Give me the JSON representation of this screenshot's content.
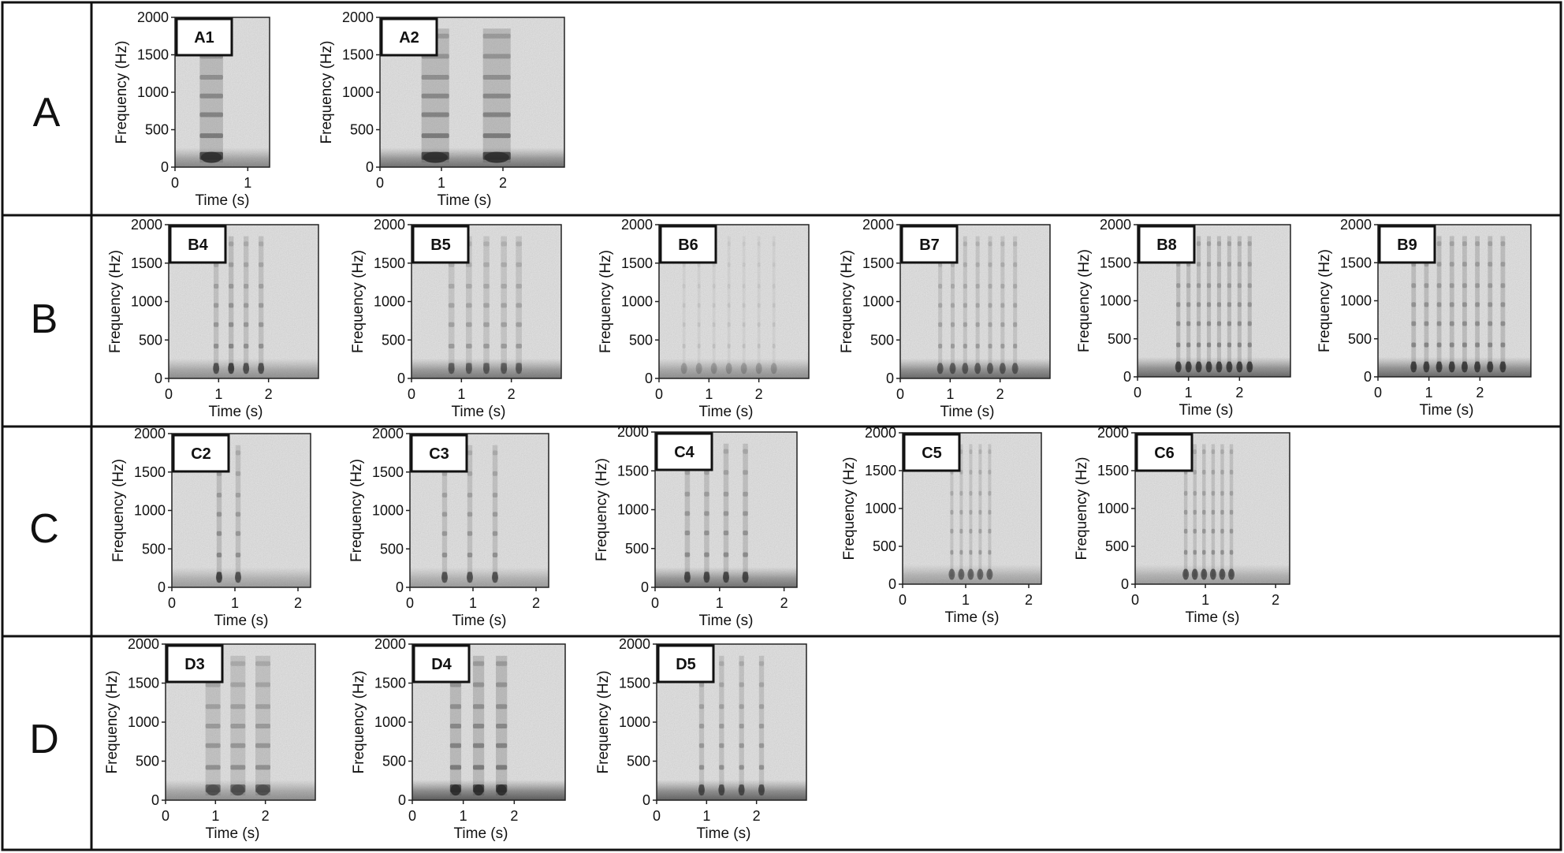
{
  "figure": {
    "colors": {
      "background": "#ffffff",
      "border": "#111111",
      "spectrogram_bg": "#cdcdcd",
      "spectrogram_dark": "#303030"
    },
    "rows": [
      {
        "label": "A",
        "panels": [
          {
            "label": "A1",
            "x_ticks": [
              0,
              1
            ],
            "y_ticks": [
              0,
              500,
              1000,
              1500,
              2000
            ],
            "xlabel": "Time (s)",
            "ylabel": "Frequency (Hz)"
          },
          {
            "label": "A2",
            "x_ticks": [
              0,
              1,
              2
            ],
            "y_ticks": [
              0,
              500,
              1000,
              1500,
              2000
            ],
            "xlabel": "Time (s)",
            "ylabel": "Frequency (Hz)"
          }
        ]
      },
      {
        "label": "B",
        "panels": [
          {
            "label": "B4",
            "x_ticks": [
              0,
              1,
              2
            ],
            "y_ticks": [
              0,
              500,
              1000,
              1500,
              2000
            ],
            "xlabel": "Time (s)",
            "ylabel": "Frequency (Hz)"
          },
          {
            "label": "B5",
            "x_ticks": [
              0,
              1,
              2
            ],
            "y_ticks": [
              0,
              500,
              1000,
              1500,
              2000
            ],
            "xlabel": "Time (s)",
            "ylabel": "Frequency (Hz)"
          },
          {
            "label": "B6",
            "x_ticks": [
              0,
              1,
              2
            ],
            "y_ticks": [
              0,
              500,
              1000,
              1500,
              2000
            ],
            "xlabel": "Time (s)",
            "ylabel": "Frequency (Hz)"
          },
          {
            "label": "B7",
            "x_ticks": [
              0,
              1,
              2
            ],
            "y_ticks": [
              0,
              500,
              1000,
              1500,
              2000
            ],
            "xlabel": "Time (s)",
            "ylabel": "Frequency (Hz)"
          },
          {
            "label": "B8",
            "x_ticks": [
              0,
              1,
              2
            ],
            "y_ticks": [
              0,
              500,
              1000,
              1500,
              2000
            ],
            "xlabel": "Time (s)",
            "ylabel": "Frequency (Hz)"
          },
          {
            "label": "B9",
            "x_ticks": [
              0,
              1,
              2
            ],
            "y_ticks": [
              0,
              500,
              1000,
              1500,
              2000
            ],
            "xlabel": "Time (s)",
            "ylabel": "Frequency (Hz)"
          }
        ]
      },
      {
        "label": "C",
        "panels": [
          {
            "label": "C2",
            "x_ticks": [
              0,
              1,
              2
            ],
            "y_ticks": [
              0,
              500,
              1000,
              1500,
              2000
            ],
            "xlabel": "Time (s)",
            "ylabel": "Frequency (Hz)"
          },
          {
            "label": "C3",
            "x_ticks": [
              0,
              1,
              2
            ],
            "y_ticks": [
              0,
              500,
              1000,
              1500,
              2000
            ],
            "xlabel": "Time (s)",
            "ylabel": "Frequency (Hz)"
          },
          {
            "label": "C4",
            "x_ticks": [
              0,
              1,
              2
            ],
            "y_ticks": [
              0,
              500,
              1000,
              1500,
              2000
            ],
            "xlabel": "Time (s)",
            "ylabel": "Frequency (Hz)"
          },
          {
            "label": "C5",
            "x_ticks": [
              0,
              1,
              2
            ],
            "y_ticks": [
              0,
              500,
              1000,
              1500,
              2000
            ],
            "xlabel": "Time (s)",
            "ylabel": "Frequency (Hz)"
          },
          {
            "label": "C6",
            "x_ticks": [
              0,
              1,
              2
            ],
            "y_ticks": [
              0,
              500,
              1000,
              1500,
              2000
            ],
            "xlabel": "Time (s)",
            "ylabel": "Frequency (Hz)"
          }
        ]
      },
      {
        "label": "D",
        "panels": [
          {
            "label": "D3",
            "x_ticks": [
              0,
              1,
              2
            ],
            "y_ticks": [
              0,
              500,
              1000,
              1500,
              2000
            ],
            "xlabel": "Time (s)",
            "ylabel": "Frequency (Hz)"
          },
          {
            "label": "D4",
            "x_ticks": [
              0,
              1,
              2
            ],
            "y_ticks": [
              0,
              500,
              1000,
              1500,
              2000
            ],
            "xlabel": "Time (s)",
            "ylabel": "Frequency (Hz)"
          },
          {
            "label": "D5",
            "x_ticks": [
              0,
              1,
              2
            ],
            "y_ticks": [
              0,
              500,
              1000,
              1500,
              2000
            ],
            "xlabel": "Time (s)",
            "ylabel": "Frequency (Hz)"
          }
        ]
      }
    ]
  }
}
